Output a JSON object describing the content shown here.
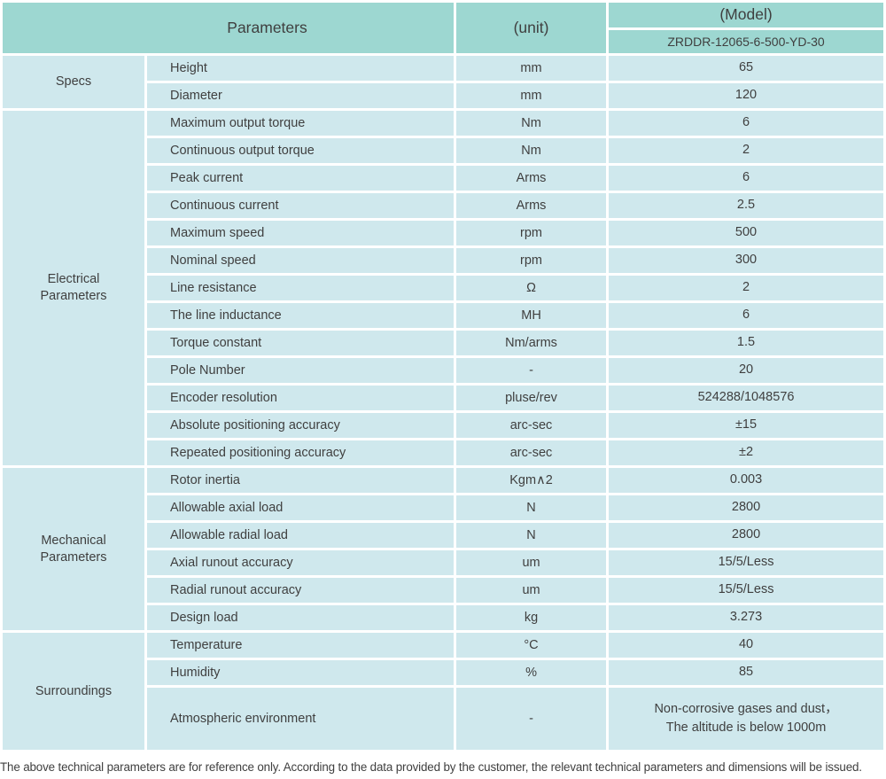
{
  "colors": {
    "header_bg": "#9dd7d1",
    "cell_bg": "#cfe8ed",
    "text": "#3f3f3f",
    "page_bg": "#ffffff"
  },
  "table": {
    "header": {
      "parameters_label": "Parameters",
      "unit_label": "(unit)",
      "model_label": "(Model)",
      "model_value": "ZRDDR-12065-6-500-YD-30"
    },
    "sections": [
      {
        "name": "Specs",
        "rows": [
          {
            "param": "Height",
            "unit": "mm",
            "value": "65"
          },
          {
            "param": "Diameter",
            "unit": "mm",
            "value": "120"
          }
        ]
      },
      {
        "name": "Electrical\nParameters",
        "rows": [
          {
            "param": "Maximum output torque",
            "unit": "Nm",
            "value": "6"
          },
          {
            "param": "Continuous output torque",
            "unit": "Nm",
            "value": "2"
          },
          {
            "param": "Peak current",
            "unit": "Arms",
            "value": "6"
          },
          {
            "param": "Continuous current",
            "unit": "Arms",
            "value": "2.5"
          },
          {
            "param": "Maximum speed",
            "unit": "rpm",
            "value": "500"
          },
          {
            "param": "Nominal speed",
            "unit": "rpm",
            "value": "300"
          },
          {
            "param": "Line resistance",
            "unit": "Ω",
            "value": "2"
          },
          {
            "param": "The line inductance",
            "unit": "MH",
            "value": "6"
          },
          {
            "param": "Torque constant",
            "unit": "Nm/arms",
            "value": "1.5"
          },
          {
            "param": "Pole Number",
            "unit": "-",
            "value": "20"
          },
          {
            "param": "Encoder resolution",
            "unit": "pluse/rev",
            "value": "524288/1048576"
          },
          {
            "param": "Absolute positioning accuracy",
            "unit": "arc-sec",
            "value": "±15"
          },
          {
            "param": "Repeated positioning accuracy",
            "unit": "arc-sec",
            "value": "±2"
          }
        ]
      },
      {
        "name": "Mechanical\nParameters",
        "rows": [
          {
            "param": "Rotor inertia",
            "unit": "Kgm∧2",
            "value": "0.003"
          },
          {
            "param": "Allowable axial load",
            "unit": "N",
            "value": "2800"
          },
          {
            "param": "Allowable radial load",
            "unit": "N",
            "value": "2800"
          },
          {
            "param": "Axial runout accuracy",
            "unit": "um",
            "value": "15/5/Less"
          },
          {
            "param": "Radial runout accuracy",
            "unit": "um",
            "value": "15/5/Less"
          },
          {
            "param": "Design load",
            "unit": "kg",
            "value": "3.273"
          }
        ]
      },
      {
        "name": "Surroundings",
        "rows": [
          {
            "param": "Temperature",
            "unit": "°C",
            "value": "40"
          },
          {
            "param": "Humidity",
            "unit": "%",
            "value": "85"
          },
          {
            "param": "Atmospheric environment",
            "unit": "-",
            "value": "Non-corrosive gases and dust，\nThe altitude is below 1000m"
          }
        ]
      }
    ]
  },
  "footer_note": "The above technical parameters are for reference only. According to the data provided by the customer, the relevant technical parameters and dimensions will be issued."
}
